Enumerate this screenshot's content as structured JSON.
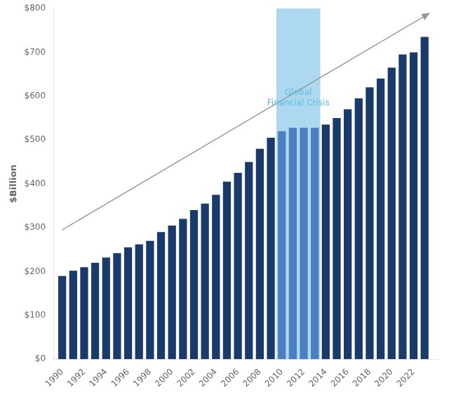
{
  "chart_data": {
    "type": "bar",
    "x": [
      1990,
      1991,
      1992,
      1993,
      1994,
      1995,
      1996,
      1997,
      1998,
      1999,
      2000,
      2001,
      2002,
      2003,
      2004,
      2005,
      2006,
      2007,
      2008,
      2009,
      2010,
      2011,
      2012,
      2013,
      2014,
      2015,
      2016,
      2017,
      2018,
      2019,
      2020,
      2021,
      2022,
      2023
    ],
    "values": [
      190,
      202,
      210,
      220,
      232,
      242,
      255,
      262,
      270,
      290,
      305,
      320,
      340,
      355,
      375,
      405,
      425,
      450,
      480,
      505,
      520,
      528,
      528,
      528,
      535,
      550,
      570,
      595,
      620,
      640,
      665,
      695,
      700,
      735
    ],
    "colors": [
      "#1a3a6b",
      "#1a3a6b",
      "#1a3a6b",
      "#1a3a6b",
      "#1a3a6b",
      "#1a3a6b",
      "#1a3a6b",
      "#1a3a6b",
      "#1a3a6b",
      "#1a3a6b",
      "#1a3a6b",
      "#1a3a6b",
      "#1a3a6b",
      "#1a3a6b",
      "#1a3a6b",
      "#1a3a6b",
      "#1a3a6b",
      "#1a3a6b",
      "#1a3a6b",
      "#1a3a6b",
      "#4a7fc1",
      "#4a7fc1",
      "#4a7fc1",
      "#4a7fc1",
      "#1a3a6b",
      "#1a3a6b",
      "#1a3a6b",
      "#1a3a6b",
      "#1a3a6b",
      "#1a3a6b",
      "#1a3a6b",
      "#1a3a6b",
      "#1a3a6b",
      "#1a3a6b"
    ],
    "xlim": [
      1989.2,
      2024.2
    ],
    "xticks": [
      1990,
      1992,
      1994,
      1996,
      1998,
      2000,
      2002,
      2004,
      2006,
      2008,
      2010,
      2012,
      2014,
      2016,
      2018,
      2020,
      2022
    ],
    "ylim": [
      0,
      800
    ],
    "yticks": [
      {
        "value": 0,
        "label": "$0"
      },
      {
        "value": 100,
        "label": "$100"
      },
      {
        "value": 200,
        "label": "$200"
      },
      {
        "value": 300,
        "label": "$300"
      },
      {
        "value": 400,
        "label": "$400"
      },
      {
        "value": 500,
        "label": "$500"
      },
      {
        "value": 600,
        "label": "$600"
      },
      {
        "value": 700,
        "label": "$700"
      },
      {
        "value": 800,
        "label": "$800"
      }
    ],
    "ylabel": "$Billion",
    "grid": false,
    "annotations": [
      {
        "type": "band",
        "x": [
          2009.5,
          2013.5
        ],
        "color": "#add8f0"
      },
      {
        "type": "arrow",
        "x": [
          1990.0,
          2023.5
        ],
        "y": [
          295,
          790
        ],
        "color": "#999999"
      },
      {
        "type": "text",
        "text": "Global\nFinancial Crisis",
        "x": 2011.5,
        "y": 575,
        "color": "#5bbde0"
      }
    ]
  }
}
